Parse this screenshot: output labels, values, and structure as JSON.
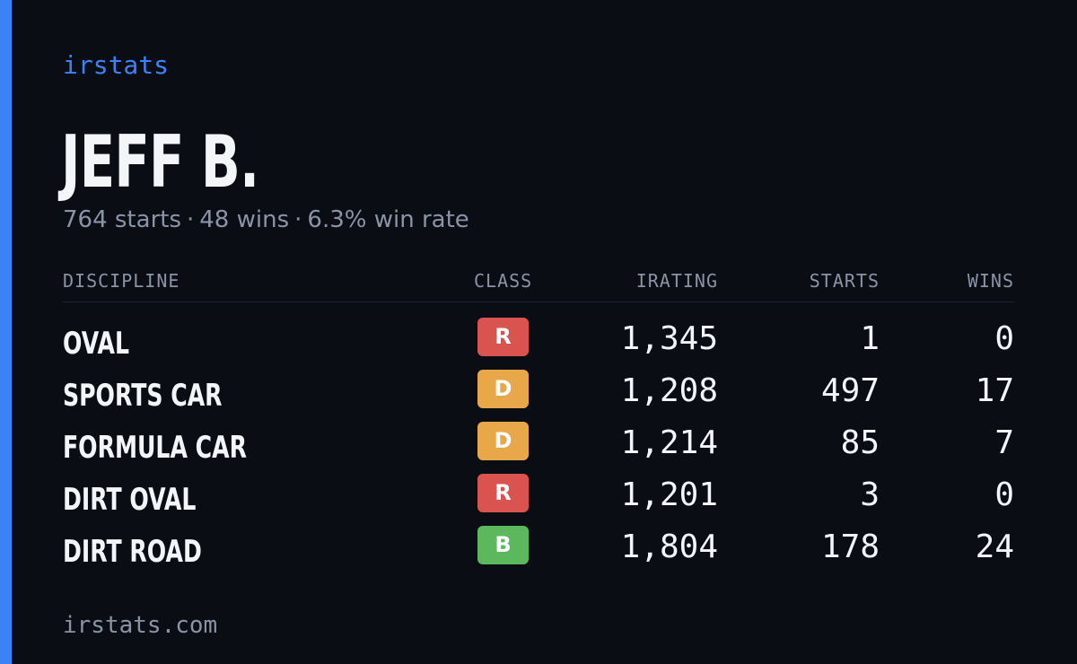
{
  "brand": "irstats",
  "driver": {
    "name": "JEFF B.",
    "starts_text": "764 starts",
    "wins_text": "48 wins",
    "winrate_text": "6.3% win rate",
    "separator": "·"
  },
  "table": {
    "headers": {
      "discipline": "DISCIPLINE",
      "class": "CLASS",
      "irating": "IRATING",
      "starts": "STARTS",
      "wins": "WINS"
    },
    "rows": [
      {
        "discipline": "OVAL",
        "class": "R",
        "class_color": "#d9534f",
        "irating": "1,345",
        "starts": "1",
        "wins": "0"
      },
      {
        "discipline": "SPORTS CAR",
        "class": "D",
        "class_color": "#e8a84a",
        "irating": "1,208",
        "starts": "497",
        "wins": "17"
      },
      {
        "discipline": "FORMULA CAR",
        "class": "D",
        "class_color": "#e8a84a",
        "irating": "1,214",
        "starts": "85",
        "wins": "7"
      },
      {
        "discipline": "DIRT OVAL",
        "class": "R",
        "class_color": "#d9534f",
        "irating": "1,201",
        "starts": "3",
        "wins": "0"
      },
      {
        "discipline": "DIRT ROAD",
        "class": "B",
        "class_color": "#5cb85c",
        "irating": "1,804",
        "starts": "178",
        "wins": "24"
      }
    ]
  },
  "footer": {
    "url": "irstats.com"
  },
  "colors": {
    "background": "#0a0d14",
    "accent": "#3b82f6",
    "muted": "#8b94a7",
    "text": "#f3f5f9"
  }
}
